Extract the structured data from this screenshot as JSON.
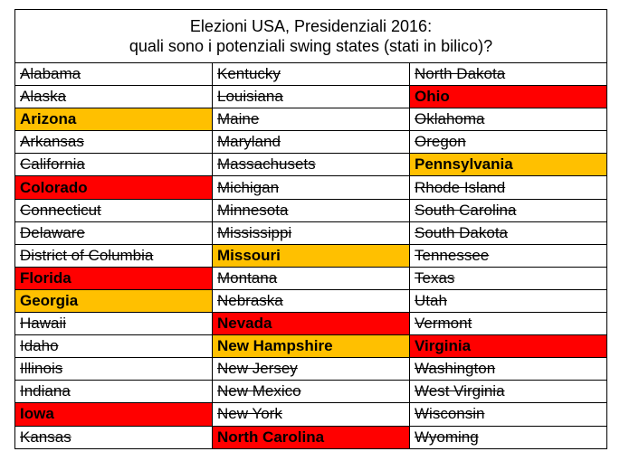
{
  "title_line1": "Elezioni USA, Presidenziali  2016:",
  "title_line2": "quali sono i potenziali swing states (stati in bilico)?",
  "colors": {
    "tossup_red": "#ff0000",
    "lean_orange": "#ffc000"
  },
  "rows": [
    [
      {
        "name": "Alabama",
        "status": "out"
      },
      {
        "name": "Kentucky",
        "status": "out"
      },
      {
        "name": "North Dakota",
        "status": "out"
      }
    ],
    [
      {
        "name": "Alaska",
        "status": "out"
      },
      {
        "name": "Louisiana",
        "status": "out"
      },
      {
        "name": "Ohio",
        "status": "red"
      }
    ],
    [
      {
        "name": "Arizona",
        "status": "orange"
      },
      {
        "name": "Maine",
        "status": "out"
      },
      {
        "name": "Oklahoma",
        "status": "out"
      }
    ],
    [
      {
        "name": "Arkansas",
        "status": "out"
      },
      {
        "name": "Maryland",
        "status": "out"
      },
      {
        "name": "Oregon",
        "status": "out"
      }
    ],
    [
      {
        "name": "California",
        "status": "out"
      },
      {
        "name": "Massachusets",
        "status": "out"
      },
      {
        "name": "Pennsylvania",
        "status": "orange"
      }
    ],
    [
      {
        "name": "Colorado",
        "status": "red"
      },
      {
        "name": "Michigan",
        "status": "out"
      },
      {
        "name": "Rhode Island",
        "status": "out"
      }
    ],
    [
      {
        "name": "Connecticut",
        "status": "out"
      },
      {
        "name": "Minnesota",
        "status": "out"
      },
      {
        "name": "South Carolina",
        "status": "out"
      }
    ],
    [
      {
        "name": "Delaware",
        "status": "out"
      },
      {
        "name": "Mississippi",
        "status": "out"
      },
      {
        "name": "South Dakota",
        "status": "out"
      }
    ],
    [
      {
        "name": "District of Columbia",
        "status": "out"
      },
      {
        "name": "Missouri",
        "status": "orange"
      },
      {
        "name": "Tennessee",
        "status": "out"
      }
    ],
    [
      {
        "name": "Florida",
        "status": "red"
      },
      {
        "name": "Montana",
        "status": "out"
      },
      {
        "name": "Texas",
        "status": "out"
      }
    ],
    [
      {
        "name": "Georgia",
        "status": "orange"
      },
      {
        "name": "Nebraska",
        "status": "out"
      },
      {
        "name": "Utah",
        "status": "out"
      }
    ],
    [
      {
        "name": "Hawaii",
        "status": "out"
      },
      {
        "name": "Nevada",
        "status": "red"
      },
      {
        "name": "Vermont",
        "status": "out"
      }
    ],
    [
      {
        "name": "Idaho",
        "status": "out"
      },
      {
        "name": "New Hampshire",
        "status": "orange"
      },
      {
        "name": "Virginia",
        "status": "red"
      }
    ],
    [
      {
        "name": "Illinois",
        "status": "out"
      },
      {
        "name": "New Jersey",
        "status": "out"
      },
      {
        "name": "Washington",
        "status": "out"
      }
    ],
    [
      {
        "name": "Indiana",
        "status": "out"
      },
      {
        "name": "New Mexico",
        "status": "out"
      },
      {
        "name": "West Virginia",
        "status": "out"
      }
    ],
    [
      {
        "name": "Iowa",
        "status": "red"
      },
      {
        "name": "New York",
        "status": "out"
      },
      {
        "name": "Wisconsin",
        "status": "out"
      }
    ],
    [
      {
        "name": "Kansas",
        "status": "out"
      },
      {
        "name": "North Carolina",
        "status": "red"
      },
      {
        "name": "Wyoming",
        "status": "out"
      }
    ]
  ]
}
